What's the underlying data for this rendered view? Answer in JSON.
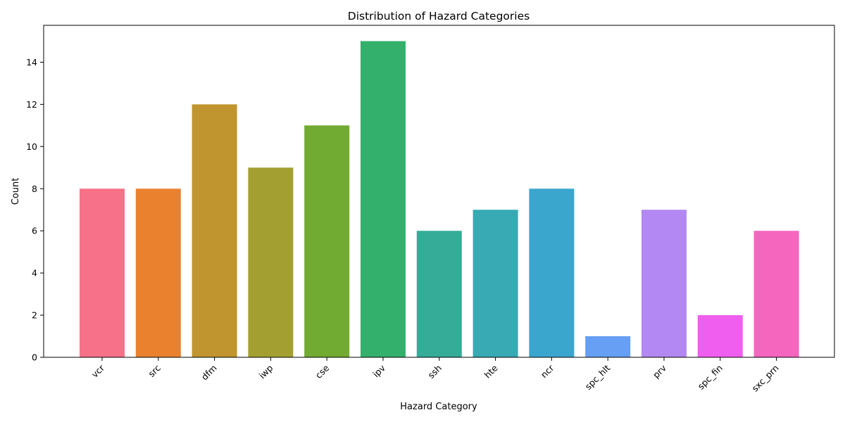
{
  "chart_data": {
    "type": "bar",
    "title": "Distribution of Hazard Categories",
    "xlabel": "Hazard Category",
    "ylabel": "Count",
    "categories": [
      "vcr",
      "src",
      "dfm",
      "iwp",
      "cse",
      "ipv",
      "ssh",
      "hte",
      "ncr",
      "spc_hlt",
      "prv",
      "spc_fin",
      "sxc_prn"
    ],
    "values": [
      8,
      8,
      12,
      9,
      11,
      15,
      6,
      7,
      8,
      1,
      7,
      2,
      6
    ],
    "colors": [
      "#f77189",
      "#e9812f",
      "#c0952f",
      "#a3a031",
      "#71ab32",
      "#33b06c",
      "#35ac98",
      "#37aab4",
      "#3ba6cd",
      "#669ff3",
      "#b388f2",
      "#f05ef0",
      "#f566bf"
    ],
    "ylim": [
      0,
      15.75
    ],
    "yticks": [
      0,
      2,
      4,
      6,
      8,
      10,
      12,
      14
    ],
    "grid": false,
    "legend": "none"
  }
}
